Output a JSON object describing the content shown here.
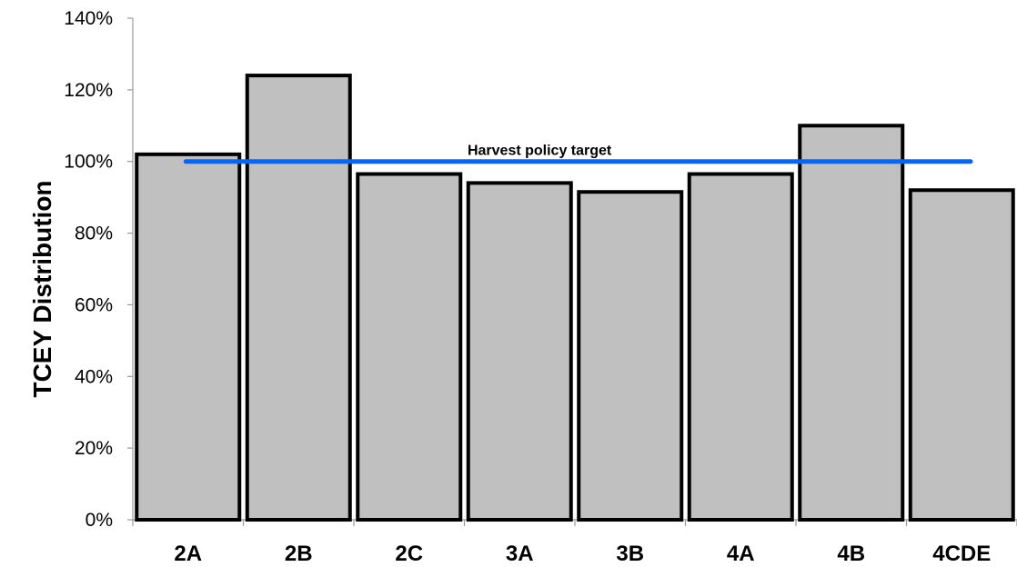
{
  "chart_data": {
    "type": "bar",
    "categories": [
      "2A",
      "2B",
      "2C",
      "3A",
      "3B",
      "4A",
      "4B",
      "4CDE"
    ],
    "values": [
      102,
      124,
      96.5,
      94,
      91.5,
      96.5,
      110,
      92
    ],
    "ylabel": "TCEY Distribution",
    "ylim": [
      0,
      140
    ],
    "y_ticks": [
      "0%",
      "20%",
      "40%",
      "60%",
      "80%",
      "100%",
      "120%",
      "140%"
    ],
    "y_tick_values": [
      0,
      20,
      40,
      60,
      80,
      100,
      120,
      140
    ],
    "reference_line": {
      "label": "Harvest policy target",
      "value": 100,
      "color": "#0066ff"
    },
    "bar_color": "#c0c0c0",
    "bar_edge_color": "#000000",
    "grid": false,
    "legend": "none"
  }
}
